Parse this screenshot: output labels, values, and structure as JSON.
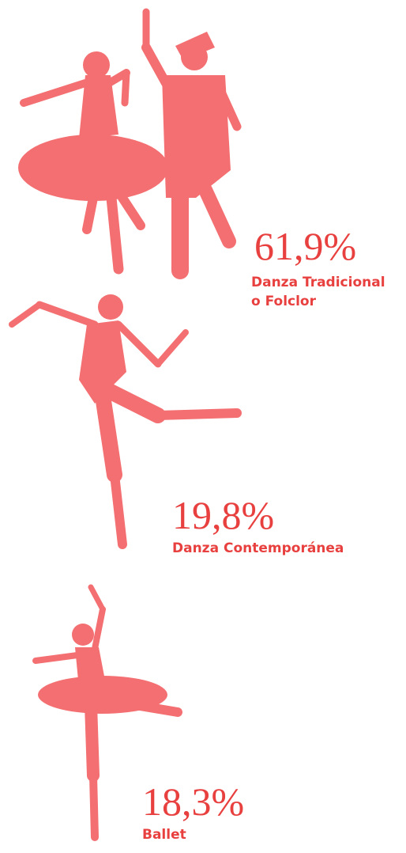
{
  "items": [
    {
      "value": "61,9%",
      "label": [
        "Danza Tradicional",
        "o Folclor"
      ]
    },
    {
      "value": "19,8%",
      "label": [
        "Danza Contemporánea"
      ]
    },
    {
      "value": "18,3%",
      "label": [
        "Ballet"
      ]
    }
  ]
}
